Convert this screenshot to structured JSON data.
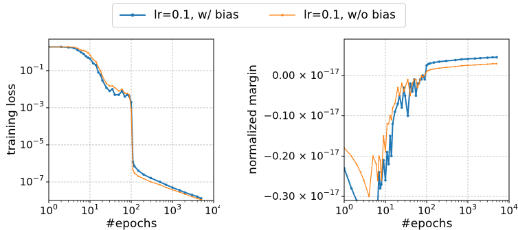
{
  "colors": {
    "with_bias": "#1f77b4",
    "without_bias": "#ff7f0e"
  },
  "legend": {
    "entries": [
      {
        "label": "lr=0.1, w/ bias",
        "series": "with_bias",
        "marker": "circle"
      },
      {
        "label": "lr=0.1, w/o bias",
        "series": "without_bias",
        "marker": "dot"
      }
    ],
    "placement": "top-center"
  },
  "chart_data": [
    {
      "type": "line",
      "xlabel": "#epochs",
      "ylabel": "training loss",
      "xscale": "log",
      "yscale": "log",
      "xlim": [
        1,
        10000
      ],
      "ylim": [
        1e-08,
        5
      ],
      "xticks": [
        {
          "value": 1,
          "base": "10",
          "exp": "0"
        },
        {
          "value": 10,
          "base": "10",
          "exp": "1"
        },
        {
          "value": 100,
          "base": "10",
          "exp": "2"
        },
        {
          "value": 1000,
          "base": "10",
          "exp": "3"
        },
        {
          "value": 10000,
          "base": "10",
          "exp": "4"
        }
      ],
      "yticks": [
        {
          "value": 0.1,
          "base": "10",
          "exp": "−1"
        },
        {
          "value": 0.001,
          "base": "10",
          "exp": "−3"
        },
        {
          "value": 1e-05,
          "base": "10",
          "exp": "−5"
        },
        {
          "value": 1e-07,
          "base": "10",
          "exp": "−7"
        }
      ],
      "grid": true,
      "series": [
        {
          "key": "with_bias",
          "x": [
            1,
            2,
            3,
            4,
            5,
            6,
            7,
            8,
            9,
            10,
            12,
            14,
            16,
            18,
            20,
            25,
            30,
            35,
            40,
            50,
            60,
            70,
            80,
            90,
            100,
            110,
            120,
            150,
            200,
            300,
            500,
            700,
            1000,
            1500,
            2000,
            3000,
            4000,
            5000
          ],
          "y": [
            1.9,
            1.9,
            1.8,
            1.7,
            1.3,
            1.0,
            0.8,
            0.6,
            0.5,
            0.45,
            0.25,
            0.2,
            0.08,
            0.06,
            0.03,
            0.012,
            0.008,
            0.01,
            0.005,
            0.005,
            0.008,
            0.004,
            0.005,
            0.004,
            0.002,
            1.2e-06,
            7e-07,
            4e-07,
            2.5e-07,
            1.6e-07,
            1e-07,
            7e-08,
            5e-08,
            3.5e-08,
            2.7e-08,
            2e-08,
            1.6e-08,
            1.3e-08
          ]
        },
        {
          "key": "without_bias",
          "x": [
            1,
            2,
            3,
            4,
            5,
            6,
            7,
            8,
            9,
            10,
            12,
            14,
            16,
            18,
            20,
            25,
            30,
            35,
            40,
            50,
            60,
            70,
            80,
            90,
            100,
            110,
            120,
            150,
            200,
            300,
            500,
            700,
            1000,
            1500,
            2000,
            3000,
            4000,
            5000
          ],
          "y": [
            1.9,
            1.9,
            1.9,
            1.85,
            1.6,
            1.3,
            1.2,
            1.1,
            0.9,
            0.7,
            0.4,
            0.3,
            0.15,
            0.1,
            0.05,
            0.02,
            0.015,
            0.015,
            0.012,
            0.008,
            0.01,
            0.006,
            0.006,
            0.005,
            0.0008,
            4.5e-07,
            3e-07,
            2e-07,
            1.5e-07,
            1e-07,
            7e-08,
            5e-08,
            3.8e-08,
            2.8e-08,
            2.2e-08,
            1.6e-08,
            1.3e-08,
            1.1e-08
          ]
        }
      ]
    },
    {
      "type": "line",
      "xlabel": "#epochs",
      "ylabel": "normalized margin",
      "xscale": "log",
      "yscale": "linear",
      "xlim": [
        1,
        10000
      ],
      "ylim": [
        -0.31,
        0.09
      ],
      "y_unit": "1e-17",
      "xticks": [
        {
          "value": 1,
          "base": "10",
          "exp": "0"
        },
        {
          "value": 10,
          "base": "10",
          "exp": "1"
        },
        {
          "value": 100,
          "base": "10",
          "exp": "2"
        },
        {
          "value": 1000,
          "base": "10",
          "exp": "3"
        },
        {
          "value": 10000,
          "base": "10",
          "exp": "4"
        }
      ],
      "yticks": [
        {
          "value": 0.0,
          "mantissa": "0.00",
          "base": "10",
          "exp": "−17"
        },
        {
          "value": -0.1,
          "mantissa": "−0.10",
          "base": "10",
          "exp": "−17"
        },
        {
          "value": -0.2,
          "mantissa": "−0.20",
          "base": "10",
          "exp": "−17"
        },
        {
          "value": -0.3,
          "mantissa": "−0.30",
          "base": "10",
          "exp": "−17"
        }
      ],
      "grid": true,
      "series": [
        {
          "key": "with_bias",
          "x": [
            1,
            1.5,
            2,
            2.5,
            3,
            4,
            5,
            6,
            6.5,
            7,
            7.5,
            8,
            9,
            10,
            11,
            12,
            13,
            14,
            15,
            17,
            20,
            22,
            25,
            28,
            30,
            35,
            40,
            45,
            50,
            55,
            60,
            65,
            70,
            75,
            80,
            90,
            100,
            110,
            120,
            150,
            200,
            300,
            500,
            700,
            1000,
            1500,
            2000,
            3000,
            4000,
            5000
          ],
          "y": [
            -0.23,
            -0.28,
            -0.31,
            -0.34,
            -0.36,
            -0.38,
            -0.36,
            -0.32,
            -0.32,
            -0.24,
            -0.28,
            -0.27,
            -0.21,
            -0.26,
            -0.19,
            -0.22,
            -0.15,
            -0.2,
            -0.12,
            -0.09,
            -0.07,
            -0.05,
            -0.08,
            -0.03,
            -0.05,
            -0.1,
            -0.02,
            -0.04,
            -0.01,
            -0.05,
            -0.02,
            -0.02,
            -0.01,
            -0.01,
            0.0,
            -0.01,
            0.025,
            0.028,
            0.03,
            0.032,
            0.034,
            0.036,
            0.038,
            0.04,
            0.041,
            0.042,
            0.043,
            0.044,
            0.045,
            0.045
          ]
        },
        {
          "key": "without_bias",
          "x": [
            1,
            1.5,
            2,
            2.5,
            3,
            4,
            5,
            6,
            6.5,
            7,
            7.5,
            8,
            9,
            10,
            11,
            12,
            13,
            14,
            15,
            17,
            20,
            22,
            25,
            28,
            30,
            35,
            40,
            45,
            50,
            55,
            60,
            65,
            70,
            75,
            80,
            90,
            100,
            110,
            120,
            150,
            200,
            300,
            500,
            700,
            1000,
            1500,
            2000,
            3000,
            4000,
            5000
          ],
          "y": [
            -0.18,
            -0.2,
            -0.22,
            -0.24,
            -0.26,
            -0.3,
            -0.2,
            -0.22,
            -0.26,
            -0.2,
            -0.21,
            -0.26,
            -0.15,
            -0.19,
            -0.12,
            -0.12,
            -0.1,
            -0.11,
            -0.08,
            -0.07,
            -0.03,
            -0.05,
            -0.02,
            -0.04,
            -0.03,
            -0.01,
            -0.05,
            -0.02,
            -0.01,
            -0.01,
            -0.03,
            -0.02,
            -0.01,
            0.0,
            -0.005,
            0.0,
            0.01,
            0.012,
            0.014,
            0.016,
            0.018,
            0.02,
            0.022,
            0.024,
            0.025,
            0.026,
            0.027,
            0.028,
            0.029,
            0.029
          ]
        }
      ]
    }
  ]
}
